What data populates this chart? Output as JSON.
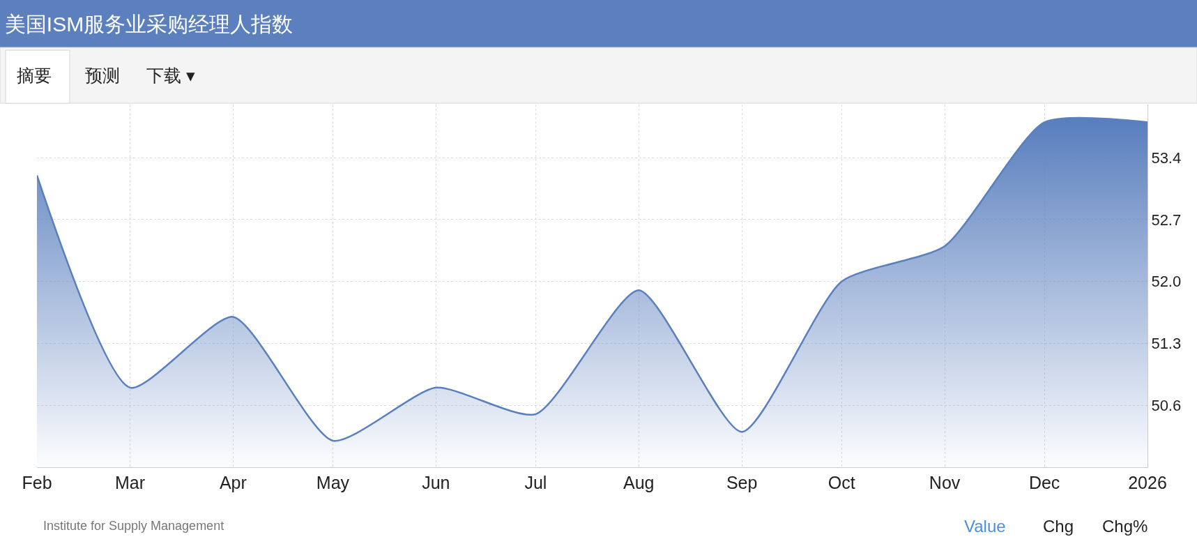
{
  "chart_data": {
    "type": "area",
    "title": "美国ISM服务业采购经理人指数",
    "x": [
      "2025-02",
      "2025-03",
      "2025-04",
      "2025-05",
      "2025-06",
      "2025-07",
      "2025-08",
      "2025-09",
      "2025-10",
      "2025-11",
      "2025-12",
      "2026-01"
    ],
    "series": [
      {
        "color": "#5a7fbe",
        "values": [
          53.2,
          50.8,
          51.6,
          50.2,
          50.8,
          50.5,
          51.9,
          50.3,
          52.0,
          52.4,
          53.8,
          53.8
        ]
      }
    ],
    "xlim": [
      "2025-02",
      "2026-01"
    ],
    "xticks": [
      {
        "value": "2025-02",
        "label": "Feb"
      },
      {
        "value": "2025-03",
        "label": "Mar"
      },
      {
        "value": "2025-04",
        "label": "Apr"
      },
      {
        "value": "2025-05",
        "label": "May"
      },
      {
        "value": "2025-06",
        "label": "Jun"
      },
      {
        "value": "2025-07",
        "label": "Jul"
      },
      {
        "value": "2025-08",
        "label": "Aug"
      },
      {
        "value": "2025-09",
        "label": "Sep"
      },
      {
        "value": "2025-10",
        "label": "Oct"
      },
      {
        "value": "2025-11",
        "label": "Nov"
      },
      {
        "value": "2025-12",
        "label": "Dec"
      },
      {
        "value": "2026-01",
        "label": "2026"
      }
    ],
    "ylim": [
      49.9,
      54.0
    ],
    "yticks": [
      50.6,
      51.3,
      {
        "value": 52.0,
        "label": "52.0"
      },
      52.7,
      53.4
    ],
    "grid": true,
    "annotations": [
      "摘要",
      "预测",
      "下载 ▾",
      "Institute for Supply Management",
      "Value",
      "Chg",
      "Chg%"
    ]
  }
}
